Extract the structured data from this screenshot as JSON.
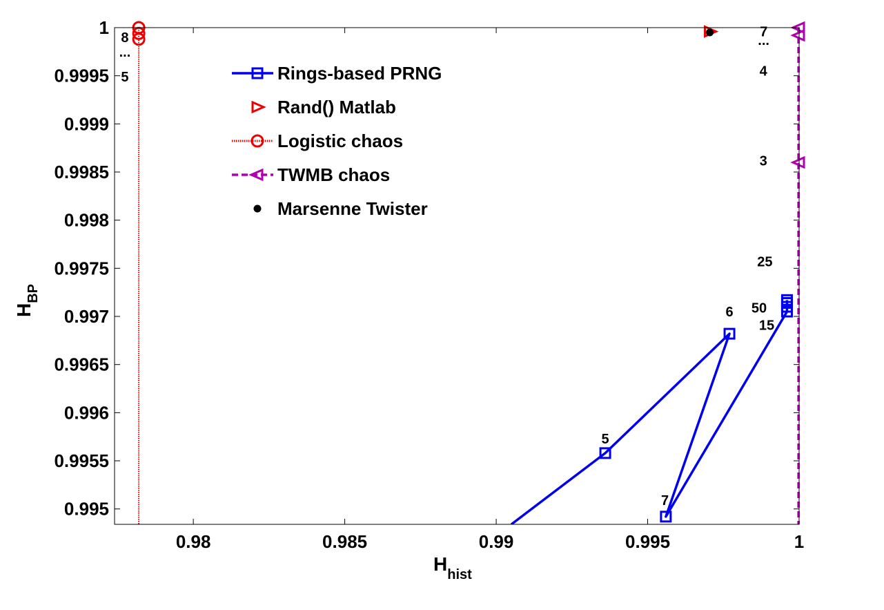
{
  "chart_data": {
    "type": "scatter",
    "xlabel": "H",
    "xlabel_sub": "hist",
    "ylabel": "H",
    "ylabel_sub": "BP",
    "xlim": [
      0.9774,
      1.0
    ],
    "ylim": [
      0.99484,
      1.0
    ],
    "xticks": [
      "0.98",
      "0.985",
      "0.99",
      "0.995",
      "1"
    ],
    "yticks": [
      "0.995",
      "0.9955",
      "0.996",
      "0.9965",
      "0.997",
      "0.9975",
      "0.998",
      "0.9985",
      "0.999",
      "0.9995",
      "1"
    ],
    "legend_position": "top-center",
    "series": [
      {
        "name": "Rings-based PRNG",
        "color": "#0000ee",
        "marker": "square",
        "line": "solid",
        "x": [
          0.9905,
          0.9936,
          0.9977,
          0.9956,
          0.9996,
          0.9996,
          0.9996,
          0.9996
        ],
        "y": [
          0.99484,
          0.99558,
          0.99682,
          0.99492,
          0.99705,
          0.9971,
          0.99714,
          0.99717
        ]
      },
      {
        "name": "Rand() Matlab",
        "color": "#ee0000",
        "marker": "triangle-right",
        "line": "none",
        "x": [
          0.99705
        ],
        "y": [
          0.99996
        ]
      },
      {
        "name": "Logistic chaos",
        "color": "#ee0000",
        "marker": "circle",
        "line": "dotted",
        "x": [
          0.9782,
          0.9782,
          0.9782
        ],
        "y": [
          1.0,
          0.99994,
          0.99988
        ],
        "line_x": 0.9782
      },
      {
        "name": "TWMB chaos",
        "color": "#b000b0",
        "marker": "triangle-left",
        "line": "dashed",
        "x": [
          1.0,
          1.0,
          1.0
        ],
        "y": [
          1.0,
          0.99992,
          0.9986
        ],
        "line_x": 0.99998
      },
      {
        "name": "Marsenne Twister",
        "color": "#000000",
        "marker": "dot",
        "line": "none",
        "x": [
          0.99705
        ],
        "y": [
          0.99995
        ]
      }
    ],
    "annotations": [
      {
        "text": "5",
        "x": 0.9936,
        "y": 0.99568
      },
      {
        "text": "6",
        "x": 0.9977,
        "y": 0.997
      },
      {
        "text": "7",
        "x": 0.99557,
        "y": 0.99504
      },
      {
        "text": "25",
        "x": 0.99887,
        "y": 0.99752
      },
      {
        "text": "50",
        "x": 0.99868,
        "y": 0.99704
      },
      {
        "text": "15",
        "x": 0.99893,
        "y": 0.99686
      },
      {
        "text": "3",
        "x": 0.99882,
        "y": 0.99857
      },
      {
        "text": "7",
        "x": 0.99883,
        "y": 0.99991
      },
      {
        "text": "...",
        "x": 0.99883,
        "y": 0.99982
      },
      {
        "text": "4",
        "x": 0.99882,
        "y": 0.9995
      },
      {
        "text": "8",
        "x": 0.97774,
        "y": 0.99985
      },
      {
        "text": "...",
        "x": 0.97774,
        "y": 0.9997
      },
      {
        "text": "5",
        "x": 0.97774,
        "y": 0.99944
      }
    ]
  }
}
